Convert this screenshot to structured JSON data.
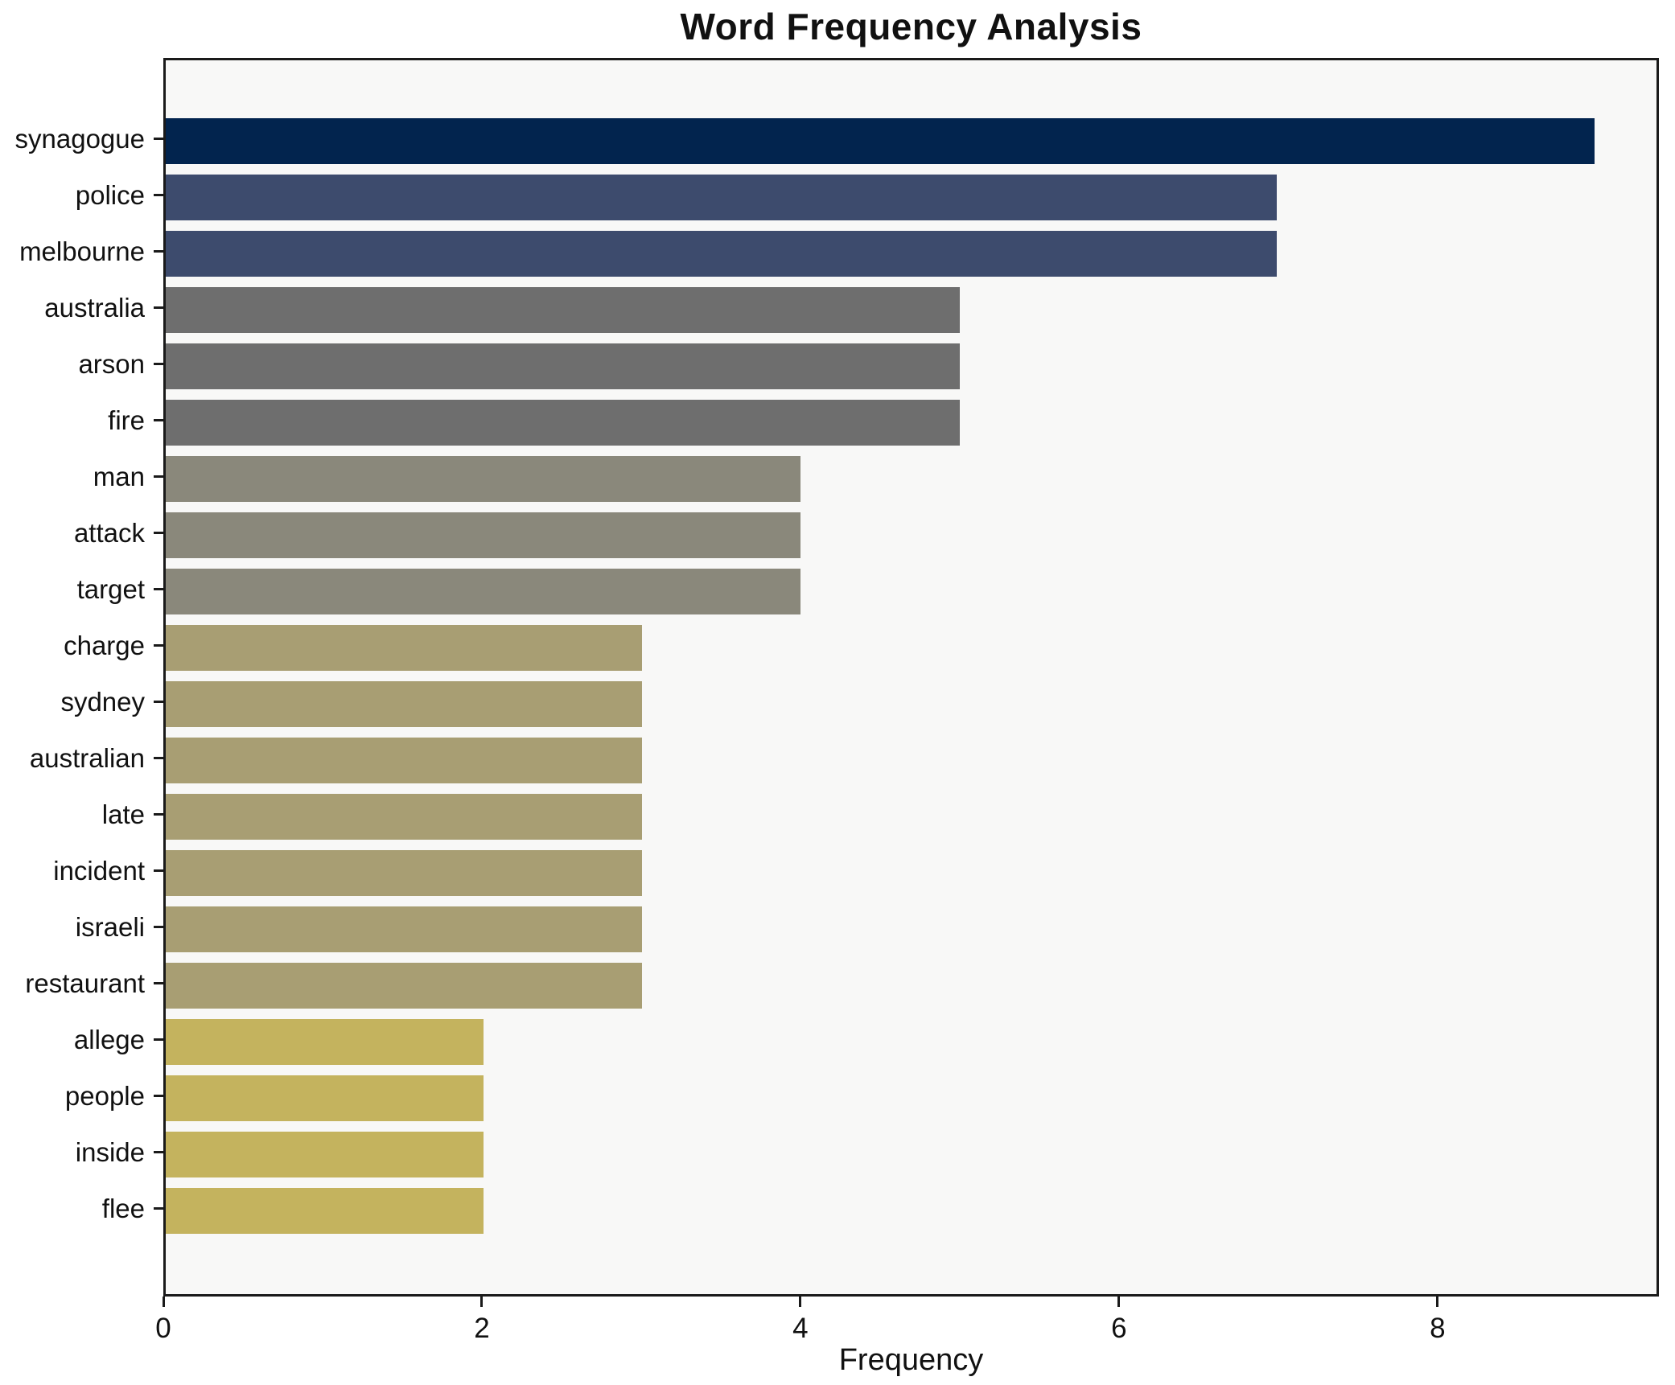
{
  "chart_data": {
    "type": "bar",
    "orientation": "horizontal",
    "title": "Word Frequency Analysis",
    "xlabel": "Frequency",
    "ylabel": "",
    "categories": [
      "synagogue",
      "police",
      "melbourne",
      "australia",
      "arson",
      "fire",
      "man",
      "attack",
      "target",
      "charge",
      "sydney",
      "australian",
      "late",
      "incident",
      "israeli",
      "restaurant",
      "allege",
      "people",
      "inside",
      "flee"
    ],
    "values": [
      9,
      7,
      7,
      5,
      5,
      5,
      4,
      4,
      4,
      3,
      3,
      3,
      3,
      3,
      3,
      3,
      2,
      2,
      2,
      2
    ],
    "bar_colors": [
      "#02244e",
      "#3d4b6d",
      "#3d4b6d",
      "#6e6e6e",
      "#6e6e6e",
      "#6e6e6e",
      "#8a887b",
      "#8a887b",
      "#8a887b",
      "#a89e73",
      "#a89e73",
      "#a89e73",
      "#a89e73",
      "#a89e73",
      "#a89e73",
      "#a89e73",
      "#c4b35e",
      "#c4b35e",
      "#c4b35e",
      "#c4b35e"
    ],
    "xticks": [
      0,
      2,
      4,
      6,
      8
    ],
    "xlim": [
      0,
      9.39
    ],
    "grid": false,
    "legend": null,
    "plot_background": "#f8f8f7",
    "figure_background": "#ffffff",
    "text_color": "#111111",
    "spine_color": "#1a1a1a"
  }
}
